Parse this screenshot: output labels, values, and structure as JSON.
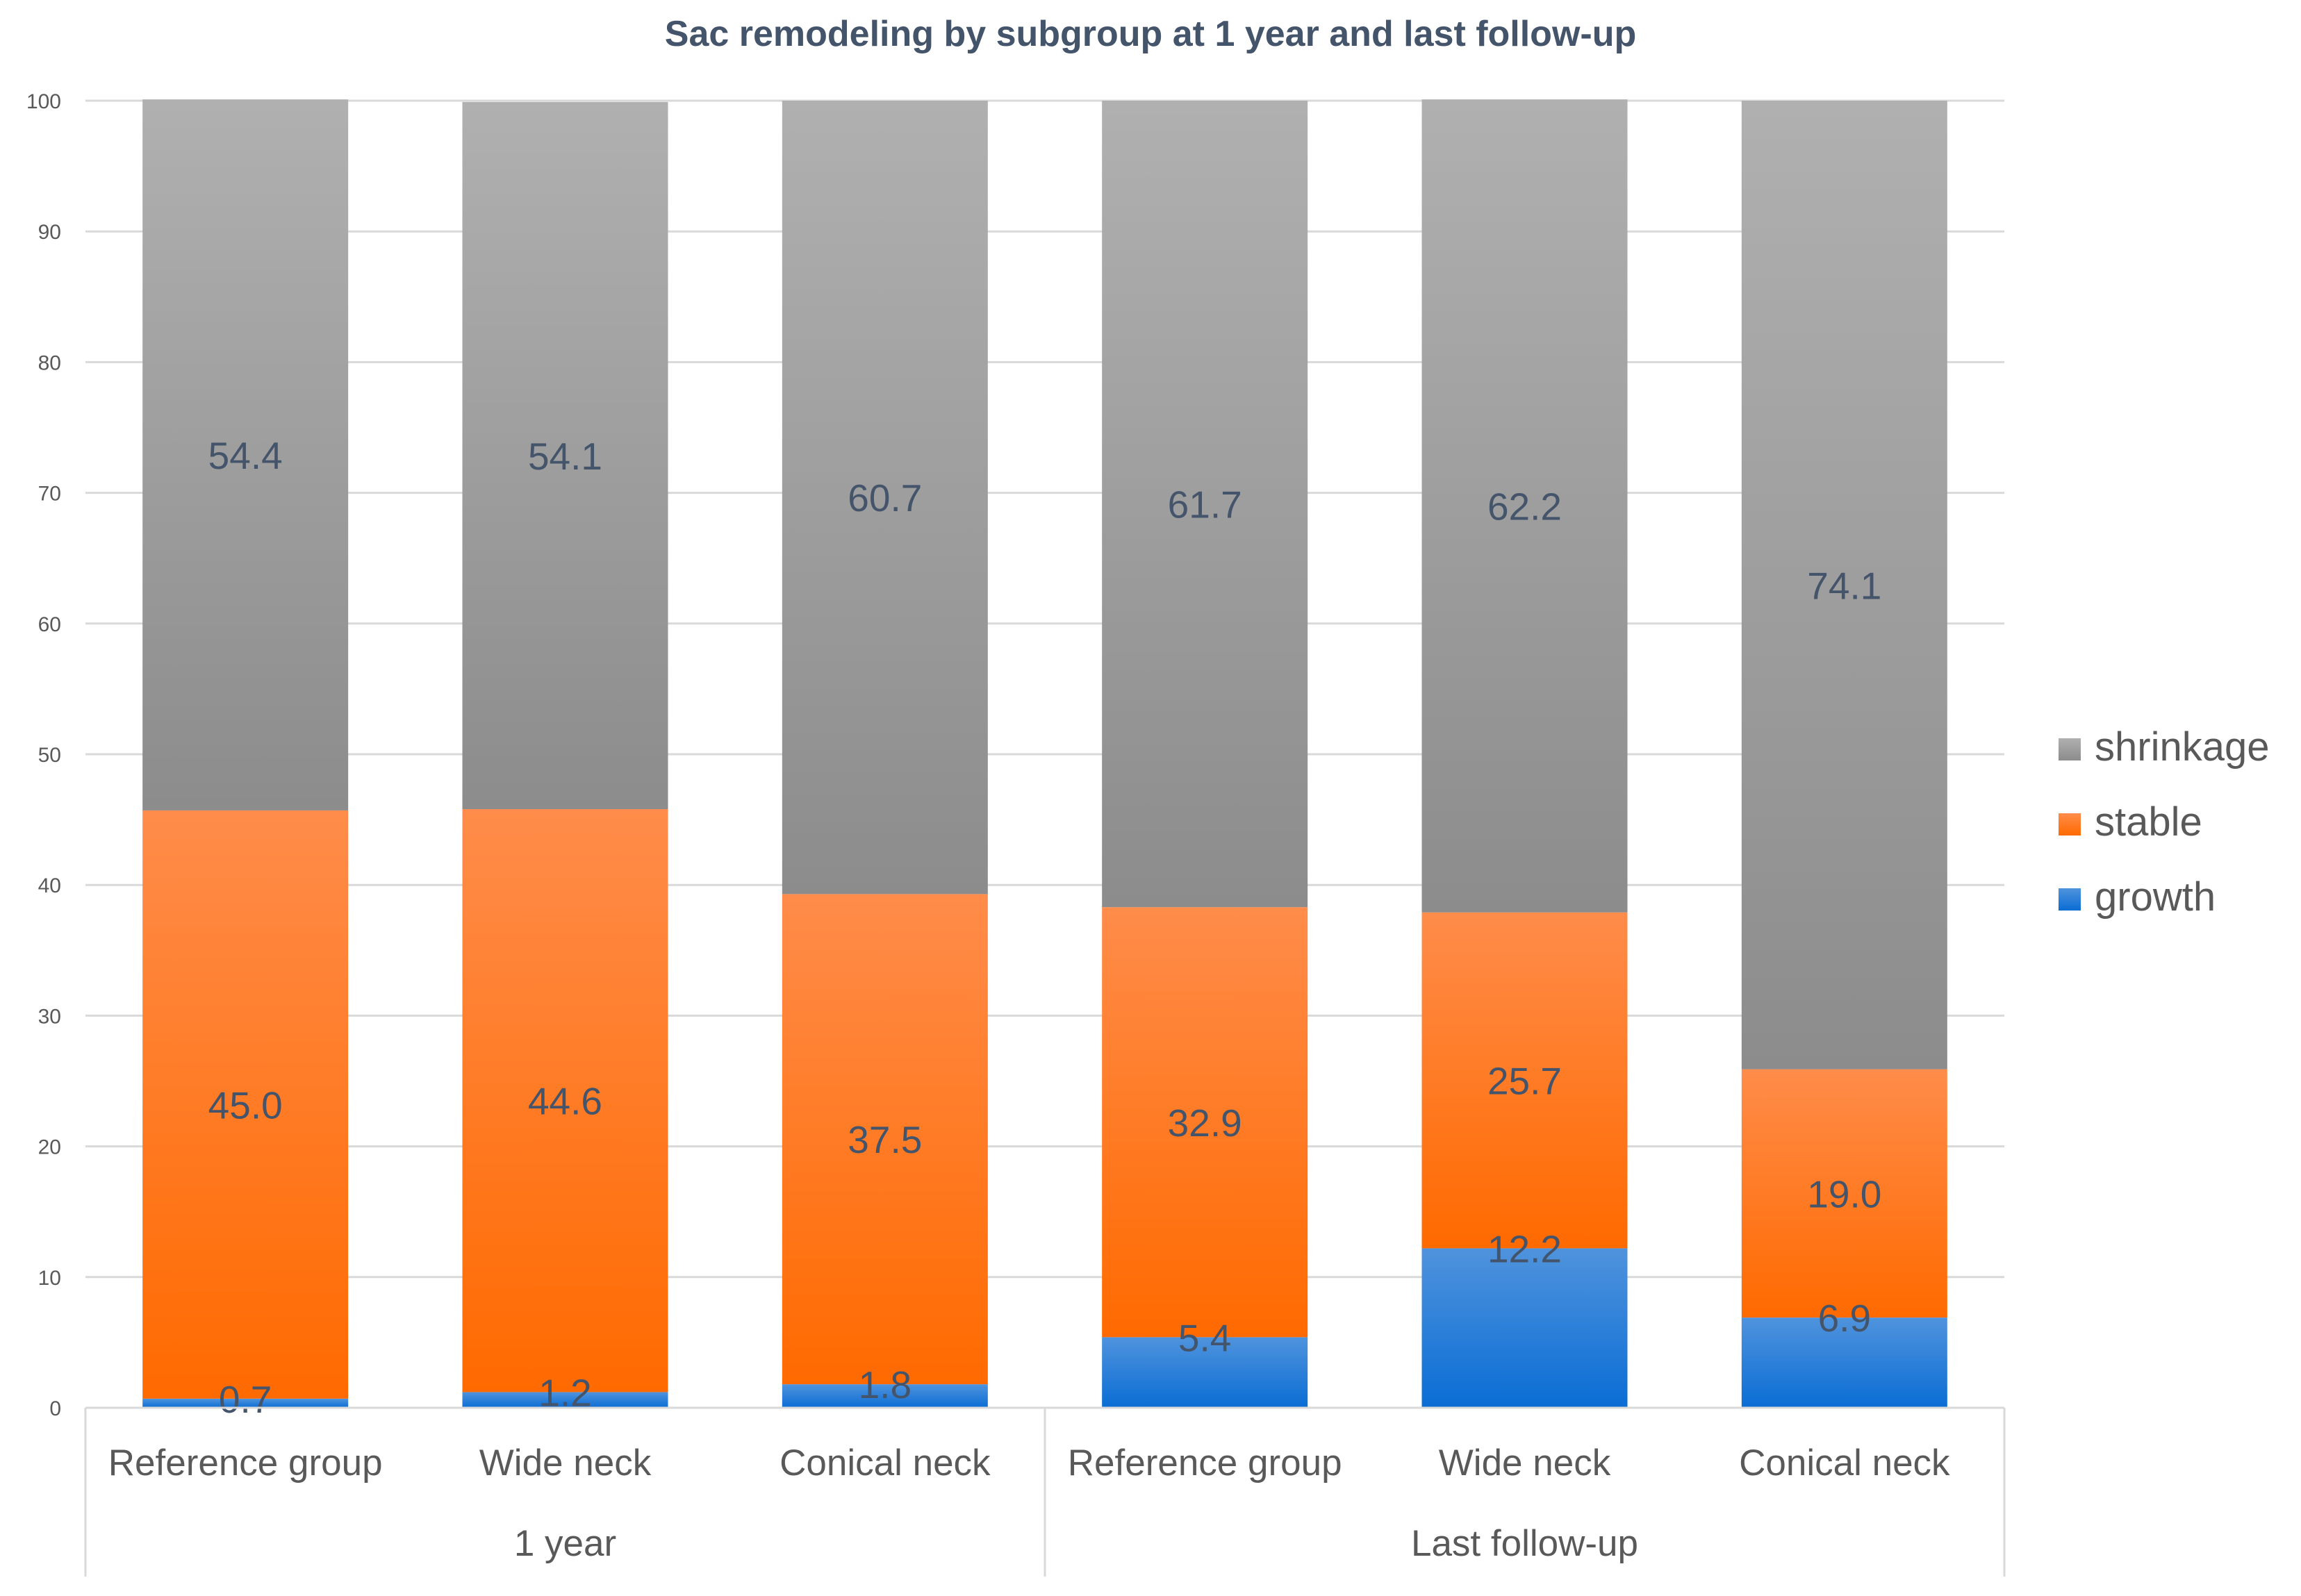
{
  "chart_data": {
    "type": "bar",
    "stacked": true,
    "title": "Sac remodeling by subgroup at 1 year and last follow-up",
    "xlabel": "",
    "ylabel": "",
    "ylim": [
      0,
      100
    ],
    "y_ticks": [
      0,
      10,
      20,
      30,
      40,
      50,
      60,
      70,
      80,
      90,
      100
    ],
    "grid": true,
    "legend_position": "right",
    "categories": [
      "Reference group",
      "Wide neck",
      "Conical neck",
      "Reference group",
      "Wide neck",
      "Conical neck"
    ],
    "groups": [
      {
        "label": "1 year",
        "categories": [
          "Reference group",
          "Wide neck",
          "Conical neck"
        ]
      },
      {
        "label": "Last follow-up",
        "categories": [
          "Reference group",
          "Wide neck",
          "Conical neck"
        ]
      }
    ],
    "series": [
      {
        "name": "growth",
        "color": "#0a6dd4",
        "color_light": "#4f93dd",
        "values": [
          0.7,
          1.2,
          1.8,
          5.4,
          12.2,
          6.9
        ],
        "labels": [
          "0.7",
          "1.2",
          "1.8",
          "5.4",
          "12.2",
          "6.9"
        ]
      },
      {
        "name": "stable",
        "color": "#ff6a00",
        "color_light": "#ff8c4a",
        "values": [
          45.0,
          44.6,
          37.5,
          32.9,
          25.7,
          19.0
        ],
        "labels": [
          "45.0",
          "44.6",
          "37.5",
          "32.9",
          "25.7",
          "19.0"
        ]
      },
      {
        "name": "shrinkage",
        "color": "#8c8c8c",
        "color_light": "#b0b0b0",
        "values": [
          54.4,
          54.1,
          60.7,
          61.7,
          62.2,
          74.1
        ],
        "labels": [
          "54.4",
          "54.1",
          "60.7",
          "61.7",
          "62.2",
          "74.1"
        ]
      }
    ],
    "legend_order": [
      "shrinkage",
      "stable",
      "growth"
    ]
  }
}
